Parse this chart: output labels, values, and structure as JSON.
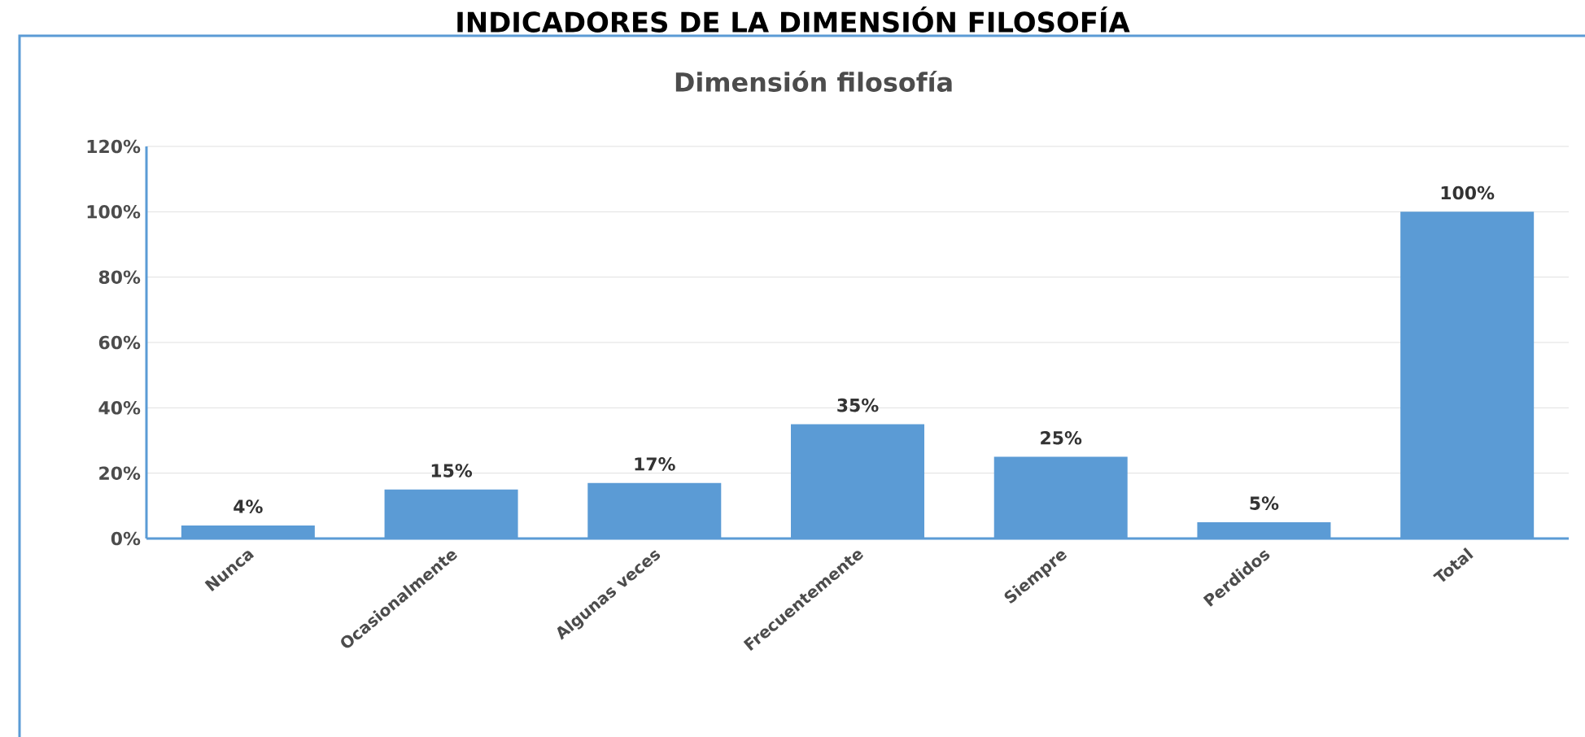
{
  "chart_data": {
    "type": "bar",
    "title": "Dimensión filosofía",
    "annotations": [
      "INDICADORES DE LA DIMENSIÓN FILOSOFÍA"
    ],
    "categories": [
      "Nunca",
      "Ocasionalmente",
      "Algunas veces",
      "Frecuentemente",
      "Siempre",
      "Perdidos",
      "Total"
    ],
    "values": [
      4,
      15,
      17,
      35,
      25,
      5,
      100
    ],
    "value_labels": [
      "4%",
      "15%",
      "17%",
      "35%",
      "25%",
      "5%",
      "100%"
    ],
    "color": "#5b9bd5",
    "ylim": [
      0,
      120
    ],
    "yticks": [
      {
        "value": 0,
        "label": "0%"
      },
      {
        "value": 20,
        "label": "20%"
      },
      {
        "value": 40,
        "label": "40%"
      },
      {
        "value": 60,
        "label": "60%"
      },
      {
        "value": 80,
        "label": "80%"
      },
      {
        "value": 100,
        "label": "100%"
      },
      {
        "value": 120,
        "label": "120%"
      }
    ],
    "grid": "y"
  }
}
